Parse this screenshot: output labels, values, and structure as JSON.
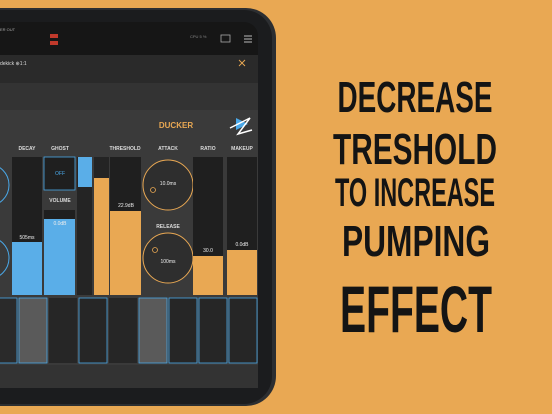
{
  "headline": [
    "DECREASE",
    "TRESHOLD",
    "TO INCREASE",
    "PUMPING",
    "EFFECT"
  ],
  "app": {
    "top_label": "ER OUT",
    "cpu": "CPU 5 %",
    "plugin_title": "dekick ⊕1:1",
    "panel_title": "DUCKER",
    "labels": {
      "decay": "DECAY",
      "ghost": "GHOST",
      "volume": "VOLUME",
      "threshold": "THRESHOLD",
      "attack": "ATTACK",
      "release": "RELEASE",
      "ratio": "RATIO",
      "makeup": "MAKEUP"
    },
    "values": {
      "decay": "505ms",
      "ghost": "OFF",
      "volume": "0.0dB",
      "threshold": "22.9dB",
      "attack": "10.0ms",
      "release": "100ms",
      "ratio": "30.0",
      "makeup": "0.0dB"
    }
  }
}
